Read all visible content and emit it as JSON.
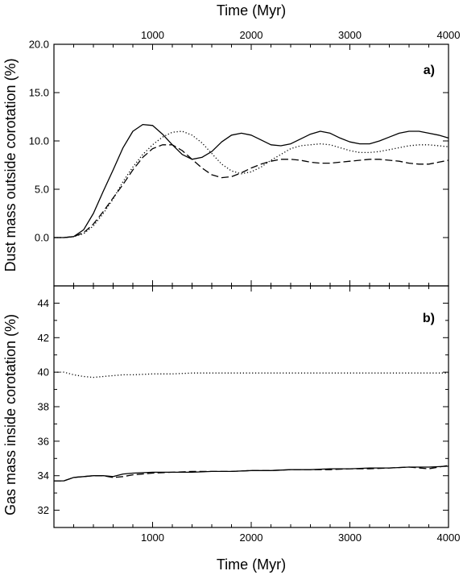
{
  "chart_data": [
    {
      "type": "line",
      "panel_label": "a)",
      "xlabel": "Time (Myr)",
      "ylabel": "Dust mass outside corotation (%)",
      "xlim": [
        0,
        4000
      ],
      "ylim": [
        -5,
        20
      ],
      "x_ticks": [
        "1000",
        "2000",
        "3000",
        "4000"
      ],
      "y_ticks": [
        "0.0",
        "5.0",
        "10.0",
        "15.0",
        "20.0"
      ],
      "grid": false,
      "series": [
        {
          "style": "solid",
          "x": [
            0,
            100,
            200,
            300,
            400,
            500,
            600,
            700,
            800,
            900,
            1000,
            1100,
            1200,
            1300,
            1400,
            1500,
            1600,
            1700,
            1800,
            1900,
            2000,
            2100,
            2200,
            2300,
            2400,
            2500,
            2600,
            2700,
            2800,
            2900,
            3000,
            3100,
            3200,
            3300,
            3400,
            3500,
            3600,
            3700,
            3800,
            3900,
            4000
          ],
          "values": [
            0,
            0,
            0.1,
            0.8,
            2.5,
            4.8,
            7.0,
            9.3,
            11.0,
            11.7,
            11.6,
            10.7,
            9.6,
            8.6,
            8.1,
            8.3,
            8.9,
            9.9,
            10.6,
            10.8,
            10.6,
            10.1,
            9.6,
            9.5,
            9.7,
            10.2,
            10.7,
            11.0,
            10.8,
            10.3,
            9.9,
            9.7,
            9.7,
            10.0,
            10.4,
            10.8,
            11.0,
            11.0,
            10.8,
            10.6,
            10.3
          ]
        },
        {
          "style": "dotted",
          "x": [
            0,
            100,
            200,
            300,
            400,
            500,
            600,
            700,
            800,
            900,
            1000,
            1100,
            1200,
            1300,
            1400,
            1500,
            1600,
            1700,
            1800,
            1900,
            2000,
            2100,
            2200,
            2300,
            2400,
            2500,
            2600,
            2700,
            2800,
            2900,
            3000,
            3100,
            3200,
            3300,
            3400,
            3500,
            3600,
            3700,
            3800,
            3900,
            4000
          ],
          "values": [
            0,
            0,
            0.1,
            0.4,
            1.2,
            2.5,
            4.0,
            5.8,
            7.3,
            8.6,
            9.6,
            10.4,
            10.9,
            11.0,
            10.6,
            9.8,
            8.7,
            7.6,
            6.9,
            6.6,
            6.8,
            7.3,
            8.0,
            8.6,
            9.2,
            9.5,
            9.6,
            9.7,
            9.6,
            9.3,
            9.0,
            8.8,
            8.8,
            8.9,
            9.1,
            9.3,
            9.5,
            9.6,
            9.6,
            9.5,
            9.4
          ]
        },
        {
          "style": "dashed",
          "x": [
            0,
            100,
            200,
            300,
            400,
            500,
            600,
            700,
            800,
            900,
            1000,
            1100,
            1200,
            1300,
            1400,
            1500,
            1600,
            1700,
            1800,
            1900,
            2000,
            2100,
            2200,
            2300,
            2400,
            2500,
            2600,
            2700,
            2800,
            2900,
            3000,
            3100,
            3200,
            3300,
            3400,
            3500,
            3600,
            3700,
            3800,
            3900,
            4000
          ],
          "values": [
            0,
            0,
            0.1,
            0.5,
            1.4,
            2.7,
            4.1,
            5.5,
            7.0,
            8.3,
            9.2,
            9.6,
            9.6,
            9.0,
            8.1,
            7.2,
            6.5,
            6.2,
            6.3,
            6.7,
            7.2,
            7.6,
            7.9,
            8.1,
            8.1,
            8.0,
            7.8,
            7.7,
            7.7,
            7.8,
            7.9,
            8.0,
            8.1,
            8.1,
            8.0,
            7.9,
            7.7,
            7.6,
            7.6,
            7.8,
            8.0
          ]
        }
      ]
    },
    {
      "type": "line",
      "panel_label": "b)",
      "xlabel": "Time (Myr)",
      "ylabel": "Gas mass inside corotation (%)",
      "xlim": [
        0,
        4000
      ],
      "ylim": [
        31,
        45
      ],
      "x_ticks": [
        "1000",
        "2000",
        "3000",
        "4000"
      ],
      "y_ticks": [
        "32",
        "34",
        "36",
        "38",
        "40",
        "42",
        "44"
      ],
      "grid": false,
      "series": [
        {
          "style": "solid",
          "x": [
            0,
            100,
            200,
            300,
            400,
            500,
            600,
            700,
            800,
            1000,
            1200,
            1400,
            1600,
            1800,
            2000,
            2200,
            2400,
            2600,
            2800,
            3000,
            3200,
            3400,
            3600,
            3800,
            4000
          ],
          "values": [
            33.7,
            33.7,
            33.9,
            33.95,
            34.0,
            34.0,
            33.95,
            34.1,
            34.15,
            34.2,
            34.2,
            34.2,
            34.25,
            34.25,
            34.3,
            34.3,
            34.35,
            34.35,
            34.4,
            34.4,
            34.45,
            34.45,
            34.5,
            34.5,
            34.55
          ]
        },
        {
          "style": "dotted",
          "x": [
            0,
            100,
            200,
            300,
            400,
            500,
            600,
            700,
            800,
            1000,
            1200,
            1400,
            1600,
            1800,
            2000,
            2200,
            2400,
            2600,
            2800,
            3000,
            3200,
            3400,
            3600,
            3800,
            4000
          ],
          "values": [
            40.0,
            40.0,
            39.85,
            39.75,
            39.7,
            39.75,
            39.8,
            39.85,
            39.85,
            39.9,
            39.9,
            39.95,
            39.95,
            39.95,
            39.95,
            39.95,
            39.95,
            39.95,
            39.95,
            39.95,
            39.95,
            39.95,
            39.95,
            39.95,
            39.95
          ]
        },
        {
          "style": "dashed",
          "x": [
            0,
            100,
            200,
            300,
            400,
            500,
            600,
            700,
            800,
            1000,
            1200,
            1400,
            1600,
            1800,
            2000,
            2200,
            2400,
            2600,
            2800,
            3000,
            3200,
            3400,
            3600,
            3800,
            4000
          ],
          "values": [
            33.7,
            33.7,
            33.9,
            33.95,
            34.0,
            34.0,
            33.9,
            33.95,
            34.05,
            34.15,
            34.2,
            34.25,
            34.25,
            34.25,
            34.3,
            34.3,
            34.35,
            34.35,
            34.35,
            34.4,
            34.4,
            34.45,
            34.5,
            34.4,
            34.6
          ]
        }
      ]
    }
  ],
  "colors": {
    "ink": "#000000",
    "background": "#ffffff"
  }
}
